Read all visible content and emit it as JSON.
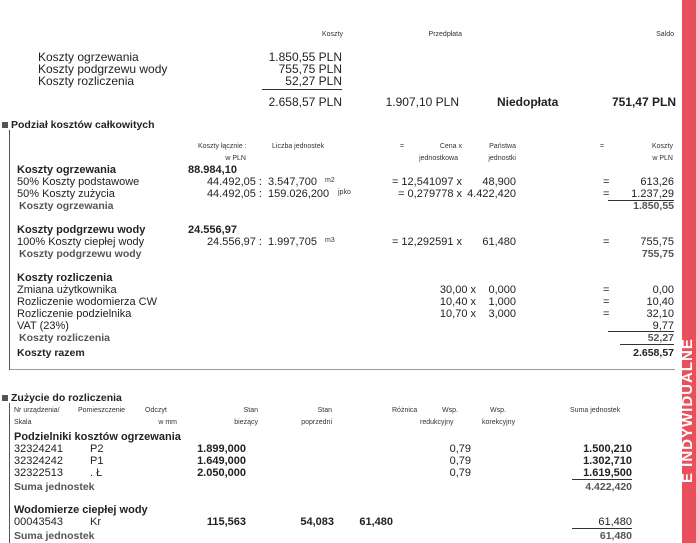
{
  "summary": {
    "headers": {
      "costs": "Koszty",
      "prepayment": "Przedpłata",
      "balance": "Saldo"
    },
    "rows": [
      {
        "label": "Koszty ogrzewania",
        "value": "1.850,55 PLN"
      },
      {
        "label": "Koszty podgrzewu wody",
        "value": "755,75 PLN"
      },
      {
        "label": "Koszty rozliczenia",
        "value": "52,27 PLN"
      }
    ],
    "total_costs": "2.658,57 PLN",
    "prepayment": "1.907,10 PLN",
    "status": "Niedopłata",
    "balance": "751,47 PLN"
  },
  "split": {
    "title": "Podział kosztów całkowitych",
    "headers": {
      "total1": "Koszty łącznie  :",
      "total2": "w PLN",
      "units": "Liczba jednostek",
      "eq1": "=",
      "price1": "Cena  x",
      "price2": "jednostkowa",
      "yours1": "Państwa",
      "yours2": "jednostki",
      "eq2": "=",
      "cost1": "Koszty",
      "cost2": "w PLN"
    },
    "heating": {
      "title": "Koszty ogrzewania",
      "total": "88.984,10",
      "rows": [
        {
          "label": "50% Koszty podstawowe",
          "amount": "44.492,05 :",
          "units": "3.547,700",
          "unit": "m2",
          "price": "= 12,541097 x",
          "yours": "48,900",
          "eq": "=",
          "cost": "613,26"
        },
        {
          "label": "50% Koszty zużycia",
          "amount": "44.492,05 :",
          "units": "159.026,200",
          "unit": "jpko",
          "price": "= 0,279778 x",
          "yours": "4.422,420",
          "eq": "=",
          "cost": "1.237,29"
        }
      ],
      "subtotal_label": "Koszty ogrzewania",
      "subtotal": "1.850,55"
    },
    "water": {
      "title": "Koszty podgrzewu wody",
      "total": "24.556,97",
      "row": {
        "label": "100% Koszty ciepłej wody",
        "amount": "24.556,97 :",
        "units": "1.997,705",
        "unit": "m3",
        "price": "= 12,292591 x",
        "yours": "61,480",
        "eq": "=",
        "cost": "755,75"
      },
      "subtotal_label": "Koszty podgrzewu wody",
      "subtotal": "755,75"
    },
    "settlement": {
      "title": "Koszty rozliczenia",
      "rows": [
        {
          "label": "Zmiana użytkownika",
          "price": "30,00 x",
          "qty": "0,000",
          "eq": "=",
          "cost": "0,00"
        },
        {
          "label": "Rozliczenie wodomierza CW",
          "price": "10,40 x",
          "qty": "1,000",
          "eq": "=",
          "cost": "10,40"
        },
        {
          "label": "Rozliczenie podzielnika",
          "price": "10,70 x",
          "qty": "3,000",
          "eq": "=",
          "cost": "32,10"
        }
      ],
      "vat_label": "VAT (23%)",
      "vat": "9,77",
      "subtotal_label": "Koszty rozliczenia",
      "subtotal": "52,27"
    },
    "grand_label": "Koszty razem",
    "grand_total": "2.658,57"
  },
  "usage": {
    "title": "Zużycie do rozliczenia",
    "headers": {
      "nr1": "Nr urządzenia/",
      "nr2": "Skala",
      "room": "Pomieszczenie",
      "read1": "Odczyt",
      "read2": "w mm",
      "cur1": "Stan",
      "cur2": "bieżący",
      "prev1": "Stan",
      "prev2": "poprzedni",
      "diff": "Różnica",
      "red1": "Wsp.",
      "red2": "redukcyjny",
      "cor1": "Wsp.",
      "cor2": "korekcyjny",
      "sum": "Suma jednostek"
    },
    "allocators": {
      "title": "Podzielniki kosztów ogrzewania",
      "rows": [
        {
          "nr": "32324241",
          "room": "P2",
          "current": "1.899,000",
          "factor": "0,79",
          "sum": "1.500,210"
        },
        {
          "nr": "32324242",
          "room": "P1",
          "current": "1.649,000",
          "factor": "0,79",
          "sum": "1.302,710"
        },
        {
          "nr": "32322513",
          "room": ". Ł",
          "current": "2.050,000",
          "factor": "0,79",
          "sum": "1.619,500"
        }
      ],
      "sum_label": "Suma jednostek",
      "sum": "4.422,420"
    },
    "meters": {
      "title": "Wodomierze ciepłej wody",
      "row": {
        "nr": "00043543",
        "room": "Kr",
        "current": "115,563",
        "previous": "54,083",
        "diff": "61,480",
        "sum": "61,480"
      },
      "sum_label": "Suma jednostek",
      "sum": "61,480"
    }
  },
  "side_label": "E INDYWIDUALNE",
  "colors": {
    "strip": "#e8505b"
  }
}
